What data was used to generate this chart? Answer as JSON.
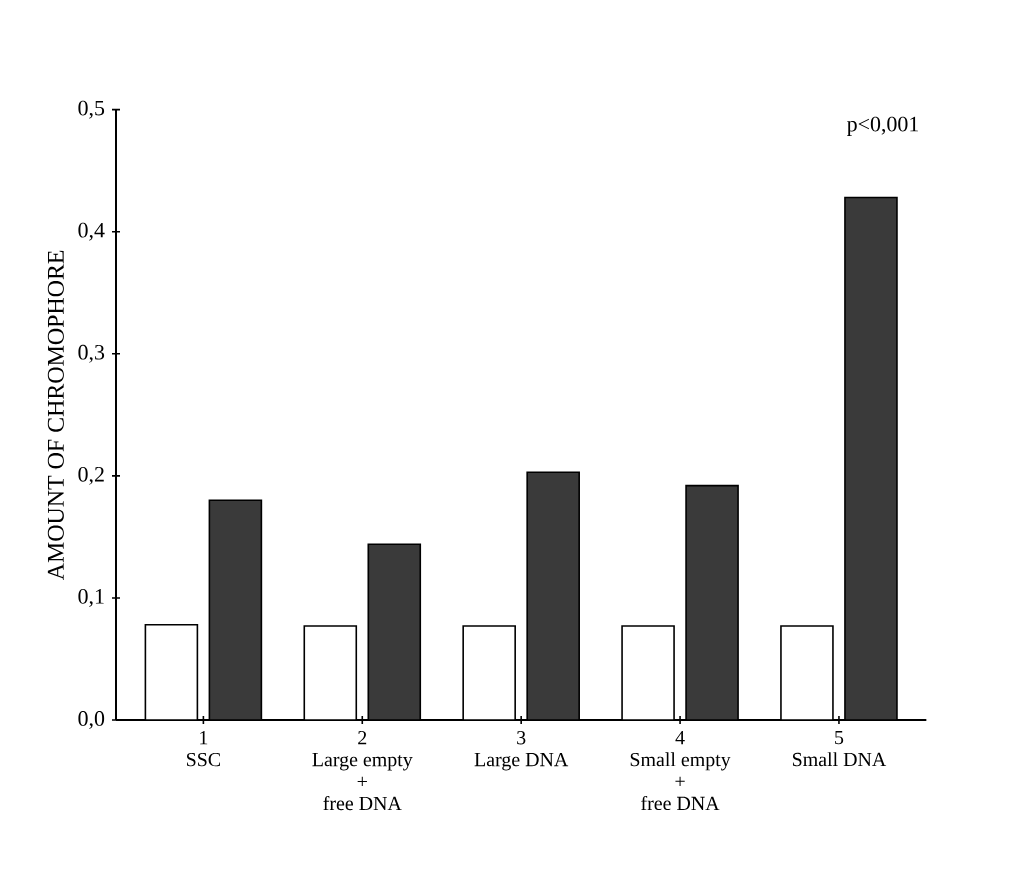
{
  "chart_data": {
    "type": "bar",
    "ylabel": "AMOUNT OF CHROMOPHORE",
    "categories": [
      "1\nSSC",
      "2\nLarge empty\n+\nfree DNA",
      "3\nLarge DNA",
      "4\nSmall empty\n+\nfree DNA",
      "5\nSmall DNA"
    ],
    "series": [
      {
        "color": "#ffffff",
        "values": [
          0.078,
          0.077,
          0.077,
          0.077,
          0.077
        ]
      },
      {
        "color": "#3a3a3a",
        "values": [
          0.18,
          0.144,
          0.203,
          0.192,
          0.428
        ]
      }
    ],
    "ylim": [
      0,
      0.5
    ],
    "yticks": [
      {
        "value": 0,
        "label": "0,0"
      },
      {
        "value": 0.1,
        "label": "0,1"
      },
      {
        "value": 0.2,
        "label": "0,2"
      },
      {
        "value": 0.3,
        "label": "0,3"
      },
      {
        "value": 0.4,
        "label": "0,4"
      },
      {
        "value": 0.5,
        "label": "0,5"
      }
    ],
    "annotations": [
      "p<0,001"
    ],
    "grid": false
  }
}
